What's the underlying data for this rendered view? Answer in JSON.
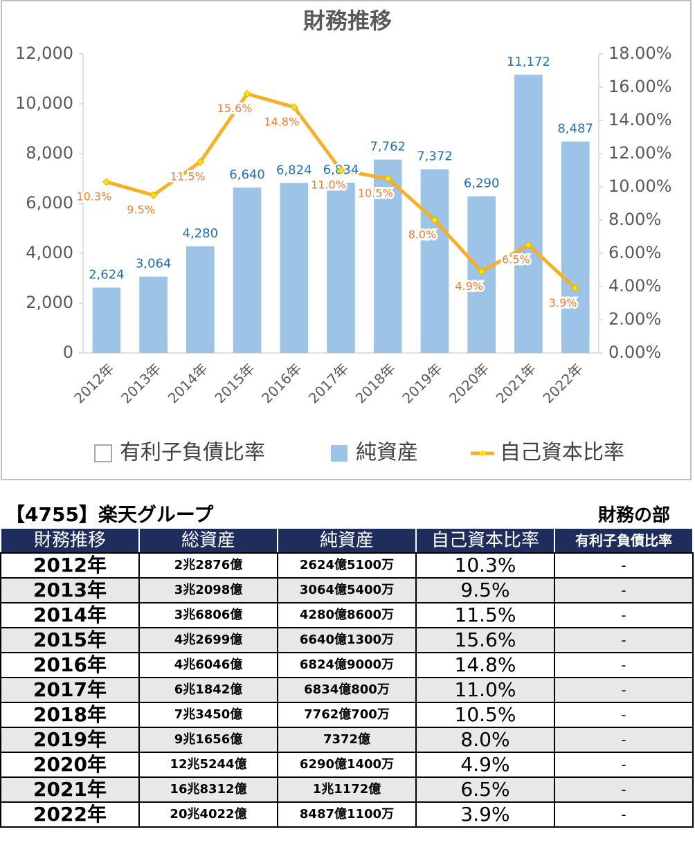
{
  "chart_data": {
    "type": "bar",
    "title": "財務推移",
    "categories": [
      "2012年",
      "2013年",
      "2014年",
      "2015年",
      "2016年",
      "2017年",
      "2018年",
      "2019年",
      "2020年",
      "2021年",
      "2022年"
    ],
    "series": [
      {
        "name": "有利子負債比率",
        "type": "bar",
        "color": "#e0e0e0",
        "values": [
          null,
          null,
          null,
          null,
          null,
          null,
          null,
          null,
          null,
          null,
          null
        ]
      },
      {
        "name": "純資産",
        "type": "bar",
        "color": "#9dc3e6",
        "values": [
          2624,
          3064,
          4280,
          6640,
          6824,
          6834,
          7762,
          7372,
          6290,
          11172,
          8487
        ],
        "value_labels": [
          "2,624",
          "3,064",
          "4,280",
          "6,640",
          "6,824",
          "6,834",
          "7,762",
          "7,372",
          "6,290",
          "11,172",
          "8,487"
        ]
      },
      {
        "name": "自己資本比率",
        "type": "line",
        "axis": "y2",
        "color": "#f6b026",
        "marker_color": "#ffe600",
        "values": [
          10.3,
          9.5,
          11.5,
          15.6,
          14.8,
          11.0,
          10.5,
          8.0,
          4.9,
          6.5,
          3.9
        ],
        "value_labels": [
          "10.3%",
          "9.5%",
          "11.5%",
          "15.6%",
          "14.8%",
          "11.0%",
          "10.5%",
          "8.0%",
          "4.9%",
          "6.5%",
          "3.9%"
        ]
      }
    ],
    "ylim": [
      0,
      12000
    ],
    "yticks": [
      0,
      {
        "value": 2000,
        "label": "2,000"
      },
      {
        "value": 4000,
        "label": "4,000"
      },
      {
        "value": 6000,
        "label": "6,000"
      },
      {
        "value": 8000,
        "label": "8,000"
      },
      {
        "value": 10000,
        "label": "10,000"
      },
      {
        "value": 12000,
        "label": "12,000"
      }
    ],
    "y2lim": [
      0,
      18
    ],
    "y2ticks": [
      {
        "value": 0,
        "label": "0.00%"
      },
      {
        "value": 2,
        "label": "2.00%"
      },
      {
        "value": 4,
        "label": "4.00%"
      },
      {
        "value": 6,
        "label": "6.00%"
      },
      {
        "value": 8,
        "label": "8.00%"
      },
      {
        "value": 10,
        "label": "10.00%"
      },
      {
        "value": 12,
        "label": "12.00%"
      },
      {
        "value": 14,
        "label": "14.00%"
      },
      {
        "value": 16,
        "label": "16.00%"
      },
      {
        "value": 18,
        "label": "18.00%"
      }
    ]
  },
  "table": {
    "title": "【4755】楽天グループ",
    "subtitle": "財務の部",
    "header": [
      "財務推移",
      "総資産",
      "純資産",
      "自己資本比率",
      "有利子負債比率"
    ],
    "rows": [
      [
        "2012年",
        "2兆2876億",
        "2624億5100万",
        "10.3%",
        "-"
      ],
      [
        "2013年",
        "3兆2098億",
        "3064億5400万",
        "9.5%",
        "-"
      ],
      [
        "2014年",
        "3兆6806億",
        "4280億8600万",
        "11.5%",
        "-"
      ],
      [
        "2015年",
        "4兆2699億",
        "6640億1300万",
        "15.6%",
        "-"
      ],
      [
        "2016年",
        "4兆6046億",
        "6824億9000万",
        "14.8%",
        "-"
      ],
      [
        "2017年",
        "6兆1842億",
        "6834億800万",
        "11.0%",
        "-"
      ],
      [
        "2018年",
        "7兆3450億",
        "7762億700万",
        "10.5%",
        "-"
      ],
      [
        "2019年",
        "9兆1656億",
        "7372億",
        "8.0%",
        "-"
      ],
      [
        "2020年",
        "12兆5244億",
        "6290億1400万",
        "4.9%",
        "-"
      ],
      [
        "2021年",
        "16兆8312億",
        "1兆1172億",
        "6.5%",
        "-"
      ],
      [
        "2022年",
        "20兆4022億",
        "8487億1100万",
        "3.9%",
        "-"
      ]
    ]
  }
}
